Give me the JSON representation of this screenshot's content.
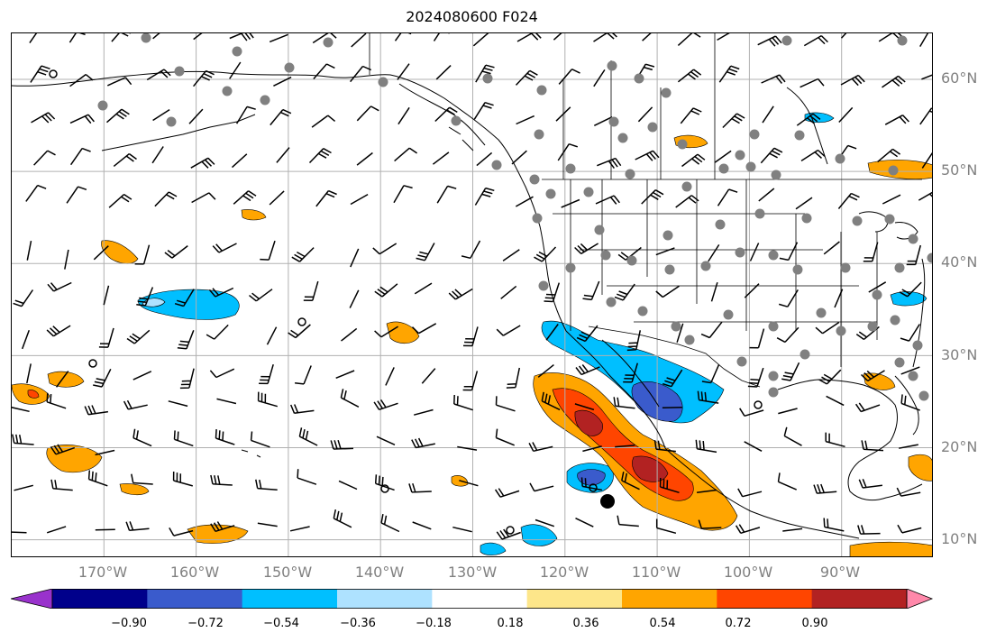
{
  "title": "2024080600 F024",
  "map": {
    "projection": "PlateCarree",
    "lon_range": [
      -180,
      -80
    ],
    "lat_range": [
      8,
      65
    ],
    "gridlines": true,
    "coastlines": true,
    "borders": true,
    "state_lines": true,
    "lat_labels": [
      "60°N",
      "50°N",
      "40°N",
      "30°N",
      "20°N",
      "10°N"
    ],
    "lon_labels": [
      "170°W",
      "160°W",
      "150°W",
      "140°W",
      "130°W",
      "120°W",
      "110°W",
      "100°W",
      "90°W"
    ]
  },
  "colorbar": {
    "tick_labels": [
      "−0.90",
      "−0.72",
      "−0.54",
      "−0.36",
      "−0.18",
      "0.18",
      "0.36",
      "0.54",
      "0.72",
      "0.90"
    ],
    "levels": [
      -0.9,
      -0.72,
      -0.54,
      -0.36,
      -0.18,
      0.18,
      0.36,
      0.54,
      0.72,
      0.9
    ],
    "colors": [
      "#9932cc",
      "#00008b",
      "#3a5bcc",
      "#00bfff",
      "#aee2ff",
      "#ffffff",
      "#fde68a",
      "#ffa500",
      "#ff4500",
      "#b22222",
      "#ff88aa"
    ],
    "extend": "both"
  },
  "colors": {
    "station_dot": "#808080",
    "gridline": "#b0b0b0",
    "axis_label": "#808080"
  }
}
